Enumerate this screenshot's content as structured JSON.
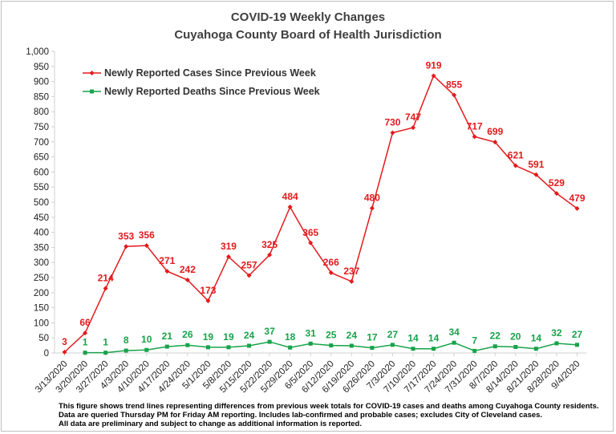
{
  "chart_data": {
    "type": "line",
    "title": "COVID-19 Weekly Changes",
    "subtitle": "Cuyahoga County Board of Health Jurisdiction",
    "categories": [
      "3/13/2020",
      "3/20/2020",
      "3/27/2020",
      "4/3/2020",
      "4/10/2020",
      "4/17/2020",
      "4/24/2020",
      "5/1/2020",
      "5/8/2020",
      "5/15/2020",
      "5/22/2020",
      "5/29/2020",
      "6/5/2020",
      "6/12/2020",
      "6/19/2020",
      "6/26/2020",
      "7/3/2020",
      "7/10/2020",
      "7/17/2020",
      "7/24/2020",
      "7/31/2020",
      "8/7/2020",
      "8/14/2020",
      "8/21/2020",
      "8/28/2020",
      "9/4/2020"
    ],
    "series": [
      {
        "name": "Newly Reported Cases Since Previous Week",
        "color": "#e31a1c",
        "marker": "diamond",
        "values": [
          3,
          66,
          214,
          353,
          356,
          271,
          242,
          173,
          319,
          257,
          325,
          484,
          365,
          266,
          237,
          480,
          730,
          747,
          919,
          855,
          717,
          699,
          621,
          591,
          529,
          479
        ]
      },
      {
        "name": "Newly Reported Deaths Since Previous Week",
        "color": "#17a34a",
        "marker": "square",
        "values": [
          null,
          1,
          1,
          8,
          10,
          21,
          26,
          19,
          19,
          24,
          37,
          18,
          31,
          25,
          24,
          17,
          27,
          14,
          14,
          34,
          7,
          22,
          20,
          14,
          32,
          27
        ]
      }
    ],
    "ylim": [
      0,
      1000
    ],
    "yticks": [
      "0",
      "50",
      "100",
      "150",
      "200",
      "250",
      "300",
      "350",
      "400",
      "450",
      "500",
      "550",
      "600",
      "650",
      "700",
      "750",
      "800",
      "850",
      "900",
      "950",
      "1,000"
    ],
    "grid": false,
    "legend": "top-left",
    "xlabel": "",
    "ylabel": ""
  },
  "footnotes": [
    "This figure shows trend lines representing differences from previous week totals for COVID-19 cases and deaths among Cuyahoga County residents.",
    "Data are queried Thursday PM for Friday AM reporting. Includes lab-confirmed and probable cases; excludes City of Cleveland cases.",
    "All data are preliminary and subject to change as additional information is reported."
  ]
}
